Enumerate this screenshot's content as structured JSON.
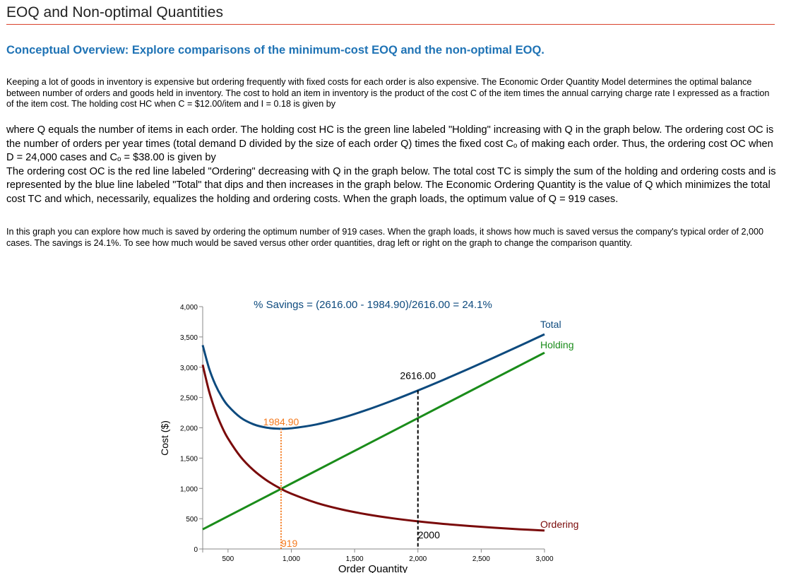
{
  "header": {
    "title": "EOQ and Non-optimal Quantities"
  },
  "overview": {
    "heading": "Conceptual Overview: Explore comparisons of the minimum-cost EOQ and the non-optimal EOQ."
  },
  "paragraphs": {
    "p1": "Keeping a lot of goods in inventory is expensive but ordering frequently with fixed costs for each order is also expensive. The Economic Order Quantity Model determines the optimal balance between number of orders and goods held in inventory. The cost to hold an item in inventory is the product of the cost C of the item times the annual carrying charge rate I expressed as a fraction of the item cost. The holding cost HC when C = $12.00/item and I = 0.18 is given by",
    "p2a": "where Q equals the number of items in each order. The holding cost HC is the green line labeled \"Holding\" increasing with Q in the graph below. The ordering cost OC is the number of orders per year times (total demand D divided by the size of each order Q) times the fixed cost Cₒ of making each order. Thus, the ordering cost OC when D = 24,000 cases and Cₒ = $38.00 is given by",
    "p2b": "The ordering cost OC is the red line labeled \"Ordering\" decreasing with Q in the graph below. The total cost TC is simply the sum of the holding and ordering costs and is represented by the blue line labeled \"Total\" that dips and then increases in the graph below. The Economic Ordering Quantity is the value of Q which minimizes the total cost TC and which, necessarily, equalizes the holding and ordering costs. When the graph loads, the optimum value of Q = 919 cases.",
    "p3": "In this graph you can explore how much is saved by ordering the optimum number of 919 cases. When the graph loads, it shows how much is saved versus the company's typical order of 2,000 cases. The savings is 24.1%. To see how much would be saved versus other order quantities, drag left or right on the graph to change the comparison quantity."
  },
  "chart_data": {
    "type": "line",
    "title": "% Savings = (2616.00 - 1984.90)/2616.00 = 24.1%",
    "xlabel": "Order Quantity",
    "ylabel": "Cost ($)",
    "xlim": [
      300,
      3000
    ],
    "ylim": [
      0,
      4000
    ],
    "xticks": [
      "500",
      "1,000",
      "1,500",
      "2,000",
      "2,500",
      "3,000"
    ],
    "xtick_values": [
      500,
      1000,
      1500,
      2000,
      2500,
      3000
    ],
    "yticks": [
      "0",
      "500",
      "1,000",
      "1,500",
      "2,000",
      "2,500",
      "3,000",
      "3,500",
      "4,000"
    ],
    "ytick_values": [
      0,
      500,
      1000,
      1500,
      2000,
      2500,
      3000,
      3500,
      4000
    ],
    "x": [
      300,
      350,
      400,
      450,
      500,
      600,
      700,
      800,
      900,
      1000,
      1200,
      1400,
      1600,
      1800,
      2000,
      2200,
      2400,
      2600,
      2800,
      3000
    ],
    "series": [
      {
        "name": "Total",
        "color": "#0d4a7e",
        "values": [
          3364,
          2983.7,
          2712,
          2512.7,
          2364,
          2168,
          2058.9,
          2004,
          1985.3,
          1992,
          2056,
          2163.4,
          2298,
          2450.7,
          2616,
          2790.5,
          2972,
          3158.8,
          3349.7,
          3544
        ]
      },
      {
        "name": "Holding",
        "color": "#1a8c1a",
        "values": [
          324,
          378,
          432,
          486,
          540,
          648,
          756,
          864,
          972,
          1080,
          1296,
          1512,
          1728,
          1944,
          2160,
          2376,
          2592,
          2808,
          3024,
          3240
        ]
      },
      {
        "name": "Ordering",
        "color": "#7a0a0a",
        "values": [
          3040,
          2605.7,
          2280,
          2026.7,
          1824,
          1520,
          1302.9,
          1140,
          1013.3,
          912,
          760,
          651.4,
          570,
          506.7,
          456,
          414.5,
          380,
          350.8,
          325.7,
          304
        ]
      }
    ],
    "optimum": {
      "q": 919,
      "q_label": "919",
      "cost": 1984.9,
      "cost_label": "1984.90",
      "color": "#f47b20"
    },
    "comparison": {
      "q": 2000,
      "q_label": "2000",
      "cost": 2616,
      "cost_label": "2616.00"
    },
    "grid": false
  }
}
